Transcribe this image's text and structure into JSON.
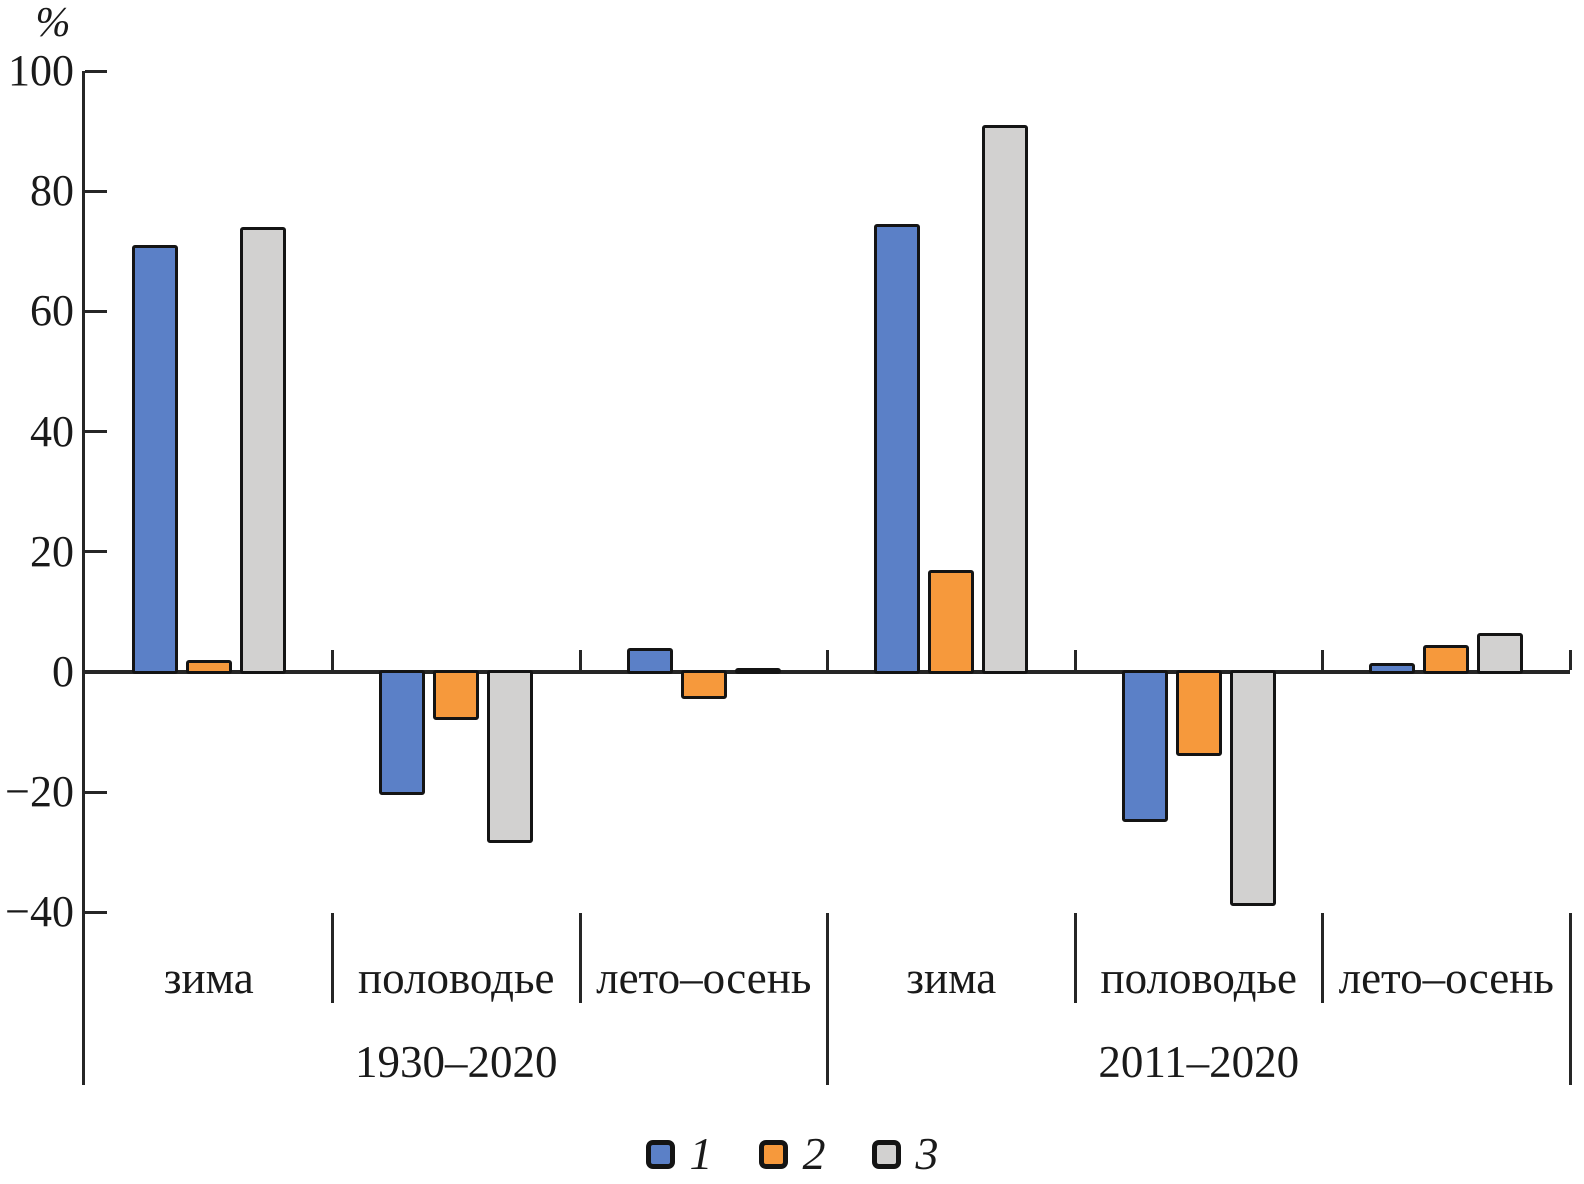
{
  "chart_data": {
    "type": "bar",
    "title": "",
    "ylabel": "%",
    "xlabel": "",
    "ylim": [
      -40,
      100
    ],
    "grid": false,
    "legend_position": "bottom",
    "yticks": [
      100,
      80,
      60,
      40,
      20,
      0,
      -20,
      -40
    ],
    "ytick_labels": [
      "100",
      "80",
      "60",
      "40",
      "20",
      "0",
      "−20",
      "−40"
    ],
    "periods": [
      {
        "label": "1930–2020",
        "categories": [
          "зима",
          "половодье",
          "лето–осень"
        ]
      },
      {
        "label": "2011–2020",
        "categories": [
          "зима",
          "половодье",
          "лето–осень"
        ]
      }
    ],
    "categories": [
      "зима",
      "половодье",
      "лето–осень",
      "зима",
      "половодье",
      "лето–осень"
    ],
    "series": [
      {
        "name": "1",
        "color": "#5b80c7",
        "values": [
          71,
          -20.5,
          4,
          74.5,
          -25,
          1.5
        ]
      },
      {
        "name": "2",
        "color": "#f6993c",
        "values": [
          2,
          -8,
          -4.5,
          17,
          -14,
          4.5
        ]
      },
      {
        "name": "3",
        "color": "#d2d1d0",
        "values": [
          74,
          -28.5,
          0.7,
          91,
          -39,
          6.5
        ]
      }
    ],
    "legend": [
      {
        "label": "1",
        "color": "#5b80c7"
      },
      {
        "label": "2",
        "color": "#f6993c"
      },
      {
        "label": "3",
        "color": "#d2d1d0"
      }
    ],
    "outline_color": "#141414",
    "axis_color": "#262626"
  }
}
